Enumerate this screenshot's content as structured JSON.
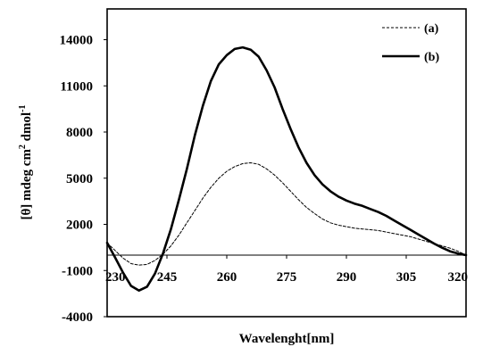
{
  "chart_data": {
    "type": "line",
    "title": "",
    "xlabel": "Wavelenght[nm]",
    "ylabel": "[θ] mdeg cm² dmol⁻¹",
    "ylabel_parts": {
      "main": "[θ] mdeg cm",
      "sup1": "2",
      "mid": " dmol",
      "sup2": "-1"
    },
    "xlim": [
      230,
      320
    ],
    "ylim": [
      -4000,
      16000
    ],
    "x_ticks": [
      230,
      245,
      260,
      275,
      290,
      305,
      320
    ],
    "x_tick_labels": [
      "230",
      "245",
      "260",
      "275",
      "290",
      "305",
      "320"
    ],
    "y_ticks": [
      -4000,
      -1000,
      2000,
      5000,
      8000,
      11000,
      14000
    ],
    "y_tick_labels": [
      "-4000",
      "-1000",
      "2000",
      "5000",
      "8000",
      "11000",
      "14000"
    ],
    "grid": false,
    "legend_position": "top-right",
    "series": [
      {
        "name": "(a)",
        "style": "dashed",
        "x": [
          230,
          232,
          234,
          236,
          238,
          240,
          242,
          244,
          246,
          248,
          250,
          252,
          254,
          256,
          258,
          260,
          262,
          264,
          266,
          268,
          270,
          272,
          274,
          276,
          278,
          280,
          282,
          284,
          286,
          288,
          290,
          292,
          294,
          296,
          298,
          300,
          302,
          304,
          306,
          308,
          310,
          312,
          314,
          316,
          318,
          320
        ],
        "values": [
          800,
          300,
          -200,
          -550,
          -650,
          -600,
          -350,
          50,
          600,
          1300,
          2100,
          2900,
          3700,
          4400,
          5000,
          5450,
          5750,
          5950,
          6000,
          5900,
          5600,
          5200,
          4700,
          4150,
          3600,
          3100,
          2700,
          2350,
          2100,
          1950,
          1850,
          1750,
          1700,
          1650,
          1600,
          1500,
          1400,
          1300,
          1200,
          1050,
          900,
          750,
          600,
          450,
          250,
          0
        ]
      },
      {
        "name": "(b)",
        "style": "solid",
        "x": [
          230,
          232,
          234,
          236,
          238,
          240,
          242,
          244,
          246,
          248,
          250,
          252,
          254,
          256,
          258,
          260,
          262,
          264,
          266,
          268,
          270,
          272,
          274,
          276,
          278,
          280,
          282,
          284,
          286,
          288,
          290,
          292,
          294,
          296,
          298,
          300,
          302,
          304,
          306,
          308,
          310,
          312,
          314,
          316,
          318,
          320
        ],
        "values": [
          800,
          -150,
          -1150,
          -2000,
          -2300,
          -2050,
          -1200,
          100,
          1700,
          3600,
          5600,
          7800,
          9700,
          11300,
          12400,
          13000,
          13400,
          13500,
          13350,
          12900,
          12000,
          10900,
          9500,
          8200,
          7000,
          6000,
          5200,
          4600,
          4150,
          3800,
          3550,
          3350,
          3200,
          3000,
          2800,
          2550,
          2250,
          1950,
          1650,
          1350,
          1050,
          750,
          480,
          250,
          100,
          0
        ]
      }
    ]
  }
}
